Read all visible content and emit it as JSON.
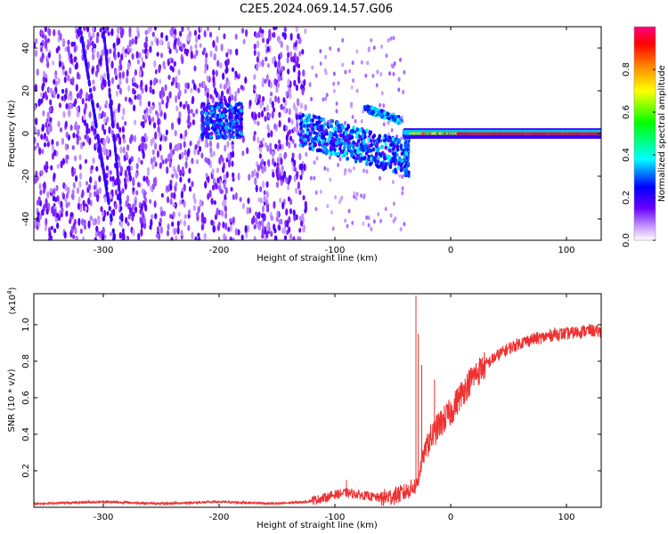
{
  "title": "C2E5.2024.069.14.57.G06",
  "chart_data": [
    {
      "type": "heatmap",
      "xlabel": "Height of straight line (km)",
      "ylabel": "Frequency (Hz)",
      "xlim": [
        -360,
        130
      ],
      "ylim": [
        -50,
        50
      ],
      "xticks": [
        -300,
        -200,
        -100,
        0,
        100
      ],
      "yticks": [
        -40,
        -20,
        0,
        20,
        40
      ],
      "colorbar": {
        "label": "Normalized spectral amplitude",
        "range": [
          0.0,
          1.0
        ],
        "ticks": [
          0.0,
          0.2,
          0.4,
          0.6,
          0.8
        ],
        "tick_labels": [
          "0.0",
          "0.2",
          "0.4",
          "0.6",
          "0.8"
        ],
        "colors": [
          "#ffffff",
          "#c9a0ff",
          "#6a00ff",
          "#0000ff",
          "#00ffff",
          "#00ff00",
          "#ffff00",
          "#ff8000",
          "#ff0000",
          "#ff0080"
        ]
      },
      "features": [
        {
          "name": "scattered-noise",
          "x_range": [
            -360,
            -125
          ],
          "y_range": [
            -50,
            50
          ],
          "amplitude": 0.1
        },
        {
          "name": "blob-a",
          "x": -200,
          "y": 5,
          "amplitude": 0.3
        },
        {
          "name": "blob-b",
          "x": -100,
          "y": 0,
          "amplitude": 0.3
        },
        {
          "name": "upper-arc",
          "x_range": [
            -75,
            -45
          ],
          "y_range": [
            12,
            5
          ],
          "amplitude": 0.35
        },
        {
          "name": "carrier-line",
          "x_range": [
            -40,
            130
          ],
          "y": 0,
          "amplitude": 0.9
        }
      ]
    },
    {
      "type": "line",
      "xlabel": "Height of straight line (km)",
      "ylabel": "SNR (10 * v/v)",
      "multiplier": "(x10",
      "multiplier_exp": "4",
      "multiplier_close": ")",
      "xlim": [
        -360,
        130
      ],
      "ylim": [
        0,
        1.17
      ],
      "xticks": [
        -300,
        -200,
        -100,
        0,
        100
      ],
      "yticks": [
        0.2,
        0.4,
        0.6,
        0.8,
        1.0
      ],
      "ytick_labels": [
        "0.2",
        "0.4",
        "0.6",
        "0.8",
        "1.0"
      ],
      "color": "#ee3030",
      "x": [
        -360,
        -300,
        -250,
        -200,
        -150,
        -125,
        -110,
        -100,
        -90,
        -80,
        -70,
        -60,
        -50,
        -40,
        -35,
        -30,
        -28,
        -25,
        -20,
        -10,
        0,
        10,
        20,
        30,
        40,
        50,
        60,
        70,
        80,
        90,
        100,
        110,
        120,
        130
      ],
      "values": [
        0.02,
        0.03,
        0.02,
        0.03,
        0.02,
        0.03,
        0.05,
        0.07,
        0.08,
        0.07,
        0.06,
        0.05,
        0.06,
        0.08,
        0.1,
        0.12,
        0.15,
        0.25,
        0.35,
        0.45,
        0.52,
        0.63,
        0.72,
        0.78,
        0.83,
        0.87,
        0.9,
        0.92,
        0.93,
        0.95,
        0.95,
        0.96,
        0.97,
        0.96
      ],
      "spikes": [
        {
          "x": -30,
          "y": 1.16
        },
        {
          "x": -28,
          "y": 0.95
        },
        {
          "x": -25,
          "y": 0.78
        },
        {
          "x": -14,
          "y": 0.7
        },
        {
          "x": -90,
          "y": 0.15
        }
      ]
    }
  ]
}
